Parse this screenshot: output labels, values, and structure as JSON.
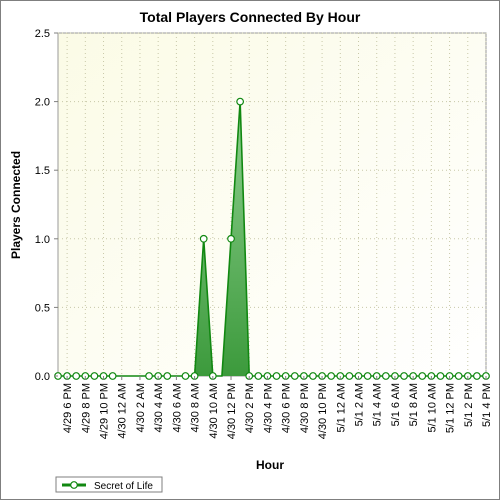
{
  "chart_data": {
    "type": "area",
    "title": "Total Players Connected By Hour",
    "xlabel": "Hour",
    "ylabel": "Players Connected",
    "ylim": [
      0,
      2.5
    ],
    "yticks": [
      "0.0",
      "0.5",
      "1.0",
      "1.5",
      "2.0",
      "2.5"
    ],
    "x_tick_labels": [
      "4/29 6 PM",
      "4/29 8 PM",
      "4/29 10 PM",
      "4/30 12 AM",
      "4/30 2 AM",
      "4/30 4 AM",
      "4/30 6 AM",
      "4/30 8 AM",
      "4/30 10 AM",
      "4/30 12 PM",
      "4/30 2 PM",
      "4/30 4 PM",
      "4/30 6 PM",
      "4/30 8 PM",
      "4/30 10 PM",
      "5/1 12 AM",
      "5/1 2 AM",
      "5/1 4 AM",
      "5/1 6 AM",
      "5/1 8 AM",
      "5/1 10 AM",
      "5/1 12 PM",
      "5/1 2 PM",
      "5/1 4 PM"
    ],
    "x_start_hour": 17,
    "x_end_hour": 64,
    "tick_start_hour": 18,
    "tick_step_hours": 2,
    "x": [
      17,
      18,
      19,
      20,
      21,
      22,
      23,
      24,
      25,
      26,
      27,
      28,
      29,
      30,
      31,
      32,
      33,
      34,
      35,
      36,
      37,
      38,
      39,
      40,
      41,
      42,
      43,
      44,
      45,
      46,
      47,
      48,
      49,
      50,
      51,
      52,
      53,
      54,
      55,
      56,
      57,
      58,
      59,
      60,
      61,
      62,
      63,
      64
    ],
    "series": [
      {
        "name": "Secret of Life",
        "color": "#118811",
        "values": [
          0,
          0,
          0,
          0,
          0,
          0,
          0,
          0,
          0,
          0,
          0,
          0,
          0,
          0,
          0,
          0,
          1,
          0,
          0,
          1,
          2,
          0,
          0,
          0,
          0,
          0,
          0,
          0,
          0,
          0,
          0,
          0,
          0,
          0,
          0,
          0,
          0,
          0,
          0,
          0,
          0,
          0,
          0,
          0,
          0,
          0,
          0,
          0
        ],
        "markers_shown": [
          true,
          true,
          true,
          true,
          true,
          true,
          true,
          false,
          false,
          false,
          true,
          true,
          true,
          false,
          true,
          true,
          true,
          true,
          false,
          true,
          true,
          true,
          true,
          true,
          true,
          true,
          true,
          true,
          true,
          true,
          true,
          true,
          true,
          true,
          true,
          true,
          true,
          true,
          true,
          true,
          true,
          true,
          true,
          true,
          true,
          true,
          true,
          true
        ]
      }
    ],
    "grid": true,
    "legend": "bottom-left"
  }
}
